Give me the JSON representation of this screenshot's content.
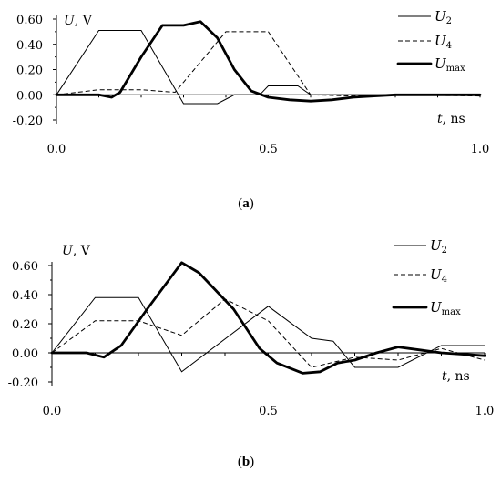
{
  "chart_data": [
    {
      "type": "line",
      "caption": "(a)",
      "caption_letter": "a",
      "ylabel": "U, V",
      "ylabel_var": "U",
      "ylabel_unit": ", V",
      "xlabel": "t, ns",
      "xlabel_var": "t",
      "xlabel_unit": ", ns",
      "xlim": [
        0,
        1.0
      ],
      "ylim": [
        -0.2,
        0.6
      ],
      "y_ticks": [
        "0.60",
        "0.40",
        "0.20",
        "0.00",
        "-0.20"
      ],
      "x_ticks": [
        "0.0",
        "0.5",
        "1.0"
      ],
      "legend": "top-right",
      "series": [
        {
          "name": "U2",
          "name_base": "U",
          "name_sub": "2",
          "style": "thin-solid",
          "points": [
            [
              0,
              0
            ],
            [
              0.1,
              0.51
            ],
            [
              0.2,
              0.51
            ],
            [
              0.3,
              -0.07
            ],
            [
              0.38,
              -0.07
            ],
            [
              0.42,
              0.0
            ],
            [
              0.48,
              0.0
            ],
            [
              0.5,
              0.07
            ],
            [
              0.57,
              0.07
            ],
            [
              0.6,
              0.0
            ],
            [
              1.0,
              0.0
            ]
          ]
        },
        {
          "name": "U4",
          "name_base": "U",
          "name_sub": "4",
          "style": "dashed",
          "points": [
            [
              0,
              0
            ],
            [
              0.1,
              0.04
            ],
            [
              0.2,
              0.04
            ],
            [
              0.28,
              0.02
            ],
            [
              0.4,
              0.5
            ],
            [
              0.5,
              0.5
            ],
            [
              0.6,
              0.0
            ],
            [
              0.7,
              -0.01
            ],
            [
              0.8,
              0.0
            ],
            [
              1.0,
              -0.01
            ]
          ]
        },
        {
          "name": "Umax",
          "name_base": "U",
          "name_sub": "max",
          "style": "thick-solid",
          "points": [
            [
              0,
              0
            ],
            [
              0.1,
              0.0
            ],
            [
              0.13,
              -0.02
            ],
            [
              0.15,
              0.02
            ],
            [
              0.2,
              0.3
            ],
            [
              0.25,
              0.55
            ],
            [
              0.3,
              0.55
            ],
            [
              0.34,
              0.58
            ],
            [
              0.38,
              0.45
            ],
            [
              0.42,
              0.2
            ],
            [
              0.46,
              0.03
            ],
            [
              0.5,
              -0.02
            ],
            [
              0.55,
              -0.04
            ],
            [
              0.6,
              -0.05
            ],
            [
              0.65,
              -0.04
            ],
            [
              0.7,
              -0.02
            ],
            [
              0.75,
              -0.01
            ],
            [
              0.8,
              0.0
            ],
            [
              1.0,
              0.0
            ]
          ]
        }
      ]
    },
    {
      "type": "line",
      "caption": "(b)",
      "caption_letter": "b",
      "ylabel": "U, V",
      "ylabel_var": "U",
      "ylabel_unit": ", V",
      "xlabel": "t, ns",
      "xlabel_var": "t",
      "xlabel_unit": ", ns",
      "xlim": [
        0,
        1.0
      ],
      "ylim": [
        -0.2,
        0.6
      ],
      "y_ticks": [
        "0.60",
        "0.40",
        "0.20",
        "0.00",
        "-0.20"
      ],
      "x_ticks": [
        "0.0",
        "0.5",
        "1.0"
      ],
      "legend": "top-right",
      "series": [
        {
          "name": "U2",
          "name_base": "U",
          "name_sub": "2",
          "style": "thin-solid",
          "points": [
            [
              0,
              0
            ],
            [
              0.1,
              0.38
            ],
            [
              0.2,
              0.38
            ],
            [
              0.3,
              -0.13
            ],
            [
              0.5,
              0.32
            ],
            [
              0.6,
              0.1
            ],
            [
              0.65,
              0.08
            ],
            [
              0.7,
              -0.1
            ],
            [
              0.8,
              -0.1
            ],
            [
              0.9,
              0.05
            ],
            [
              1.0,
              0.05
            ]
          ]
        },
        {
          "name": "U4",
          "name_base": "U",
          "name_sub": "4",
          "style": "dashed",
          "points": [
            [
              0,
              0
            ],
            [
              0.1,
              0.22
            ],
            [
              0.2,
              0.22
            ],
            [
              0.3,
              0.12
            ],
            [
              0.4,
              0.37
            ],
            [
              0.5,
              0.22
            ],
            [
              0.6,
              -0.1
            ],
            [
              0.7,
              -0.03
            ],
            [
              0.8,
              -0.05
            ],
            [
              0.9,
              0.03
            ],
            [
              1.0,
              -0.05
            ]
          ]
        },
        {
          "name": "Umax",
          "name_base": "U",
          "name_sub": "max",
          "style": "thick-solid",
          "points": [
            [
              0,
              0
            ],
            [
              0.08,
              0.0
            ],
            [
              0.12,
              -0.03
            ],
            [
              0.16,
              0.05
            ],
            [
              0.22,
              0.3
            ],
            [
              0.3,
              0.62
            ],
            [
              0.34,
              0.55
            ],
            [
              0.42,
              0.3
            ],
            [
              0.48,
              0.03
            ],
            [
              0.52,
              -0.07
            ],
            [
              0.58,
              -0.14
            ],
            [
              0.62,
              -0.13
            ],
            [
              0.66,
              -0.07
            ],
            [
              0.7,
              -0.05
            ],
            [
              0.75,
              0.0
            ],
            [
              0.8,
              0.04
            ],
            [
              0.85,
              0.02
            ],
            [
              0.9,
              0.0
            ],
            [
              1.0,
              -0.02
            ]
          ]
        }
      ]
    }
  ]
}
